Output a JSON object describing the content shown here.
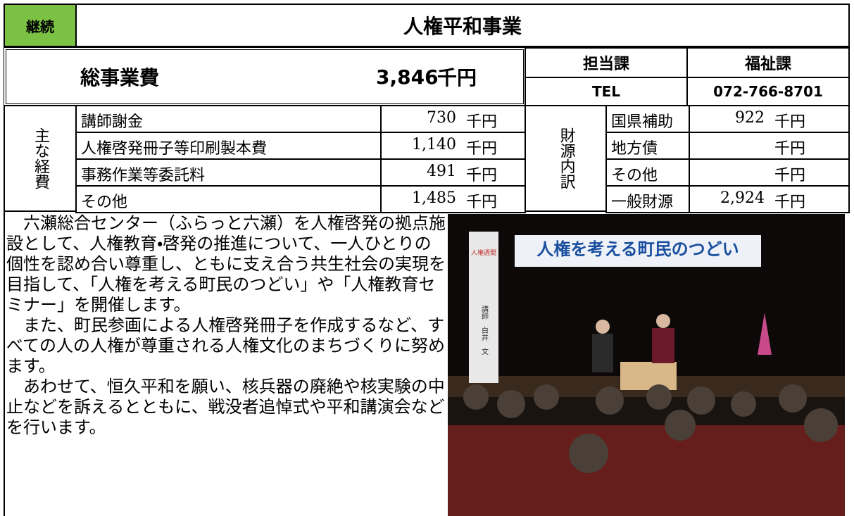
{
  "header": {
    "status": "継続",
    "title": "人権平和事業"
  },
  "total": {
    "label": "総事業費",
    "amount": "3,846",
    "unit": "千円"
  },
  "dept": {
    "label": "担当課",
    "value": "福祉課",
    "tel_label": "TEL",
    "tel": "072-766-8701"
  },
  "expenses": {
    "label": "主な経費",
    "items": [
      {
        "name": "講師謝金",
        "amount": "730",
        "unit": "千円"
      },
      {
        "name": "人権啓発冊子等印刷製本費",
        "amount": "1,140",
        "unit": "千円"
      },
      {
        "name": "事務作業等委託料",
        "amount": "491",
        "unit": "千円"
      },
      {
        "name": "その他",
        "amount": "1,485",
        "unit": "千円"
      }
    ]
  },
  "funding": {
    "label": "財源内訳",
    "items": [
      {
        "name": "国県補助",
        "amount": "922",
        "unit": "千円"
      },
      {
        "name": "地方債",
        "unit": "千円"
      },
      {
        "name": "その他",
        "unit": "千円"
      },
      {
        "name": "一般財源",
        "amount": "2,924",
        "unit": "千円"
      }
    ]
  },
  "description": {
    "paragraphs": [
      "　六瀬総合センター（ふらっと六瀬）を人権啓発の拠点施設として、人権教育・啓発の推進について、一人ひとりの個性を認め合い尊重し、ともに支え合う共生社会の実現を目指して、「人権を考える町民のつどい」や「人権教育セミナー」を開催します。",
      "　また、町民参画による人権啓発冊子を作成するなど、すべての人の人権が尊重される人権文化のまちづくりに努めます。",
      "　あわせて、恒久平和を願い、核兵器の廃絶や核実験の中止などを訴えるとともに、戦没者追悼式や平和講演会などを行います。"
    ]
  },
  "photo": {
    "banner": "人権を考える町民のつどい",
    "side_banner": "人権週間",
    "lecturer": "講師　白井　文"
  }
}
